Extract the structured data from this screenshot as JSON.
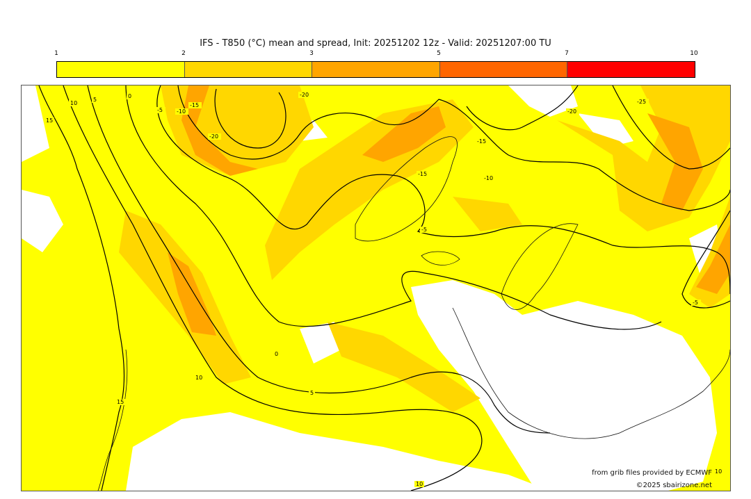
{
  "title": "IFS - T850 (°C) mean and spread, Init: 20251202 12z - Valid: 20251207:00 TU",
  "colorbar": {
    "ticks": [
      "1",
      "2",
      "3",
      "5",
      "7",
      "10"
    ],
    "colors": [
      "#ffff00",
      "#ffd700",
      "#ffa500",
      "#ff6600",
      "#ff0000"
    ]
  },
  "map": {
    "colors": {
      "spread_low": "#ffff00",
      "spread_mid": "#ffd700",
      "spread_high": "#ffa500",
      "no_shade": "#ffffff",
      "contour": "#000000"
    },
    "contour_labels": [
      "15",
      "10",
      "5",
      "0",
      "-5",
      "-10",
      "-15",
      "-20",
      "-20",
      "-15",
      "-15",
      "-10",
      "-5",
      "-20",
      "-25",
      "-5",
      "0",
      "5",
      "10",
      "15",
      "10",
      "10"
    ]
  },
  "credits": {
    "source": "from grib files provided by ECMWF",
    "copyright": "©2025 sbairizone.net"
  }
}
